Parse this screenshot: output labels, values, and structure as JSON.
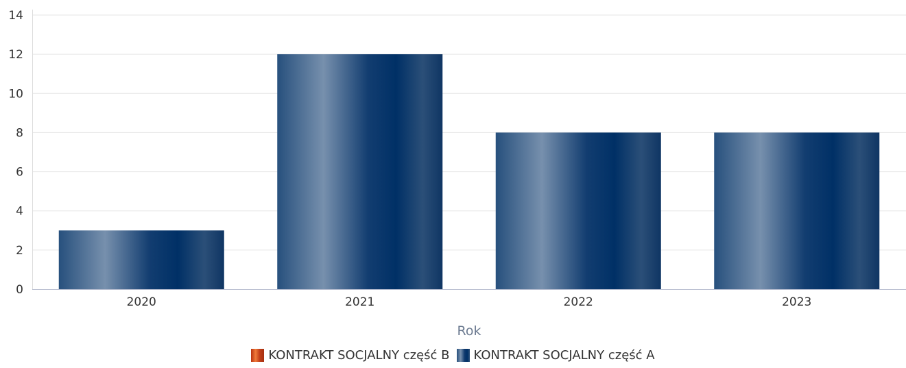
{
  "chart_data": {
    "type": "bar",
    "categories": [
      "2020",
      "2021",
      "2022",
      "2023"
    ],
    "series": [
      {
        "name": "KONTRAKT SOCJALNY część B",
        "values": [
          0,
          0,
          0,
          0
        ],
        "color": "#d9481c"
      },
      {
        "name": "KONTRAKT SOCJALNY część A",
        "values": [
          3,
          12,
          8,
          8
        ],
        "color": "#003066"
      }
    ],
    "xlabel": "Rok",
    "ylabel": "",
    "ylim": [
      0,
      14
    ],
    "yticks": [
      0,
      2,
      4,
      6,
      8,
      10,
      12,
      14
    ],
    "grid": true,
    "legend_position": "bottom"
  }
}
